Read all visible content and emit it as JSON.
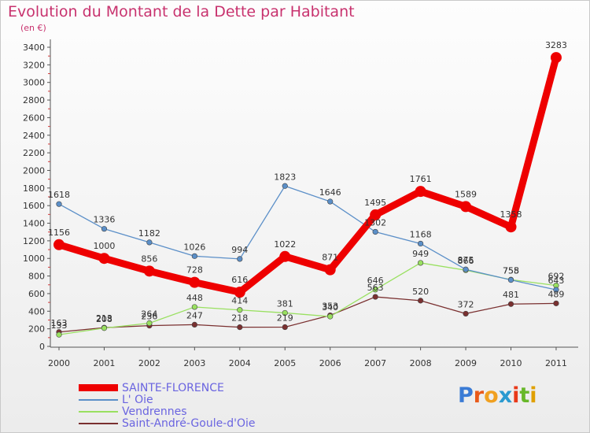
{
  "title": "Evolution du Montant de la Dette par Habitant",
  "subtitle": "(en €)",
  "logo": {
    "text": "Proxiti",
    "letter_colors": [
      "#3a7bd5",
      "#e85a1a",
      "#f0a020",
      "#2a9ad0",
      "#e83a1a",
      "#68b82a",
      "#e0a000"
    ]
  },
  "chart_data": {
    "type": "line",
    "title": "Evolution du Montant de la Dette par Habitant",
    "subtitle": "(en €)",
    "x": [
      "2000",
      "2001",
      "2002",
      "2003",
      "2004",
      "2005",
      "2006",
      "2007",
      "2008",
      "2009",
      "2010",
      "2011"
    ],
    "ylim": [
      0,
      3400
    ],
    "yticks": [
      0,
      200,
      400,
      600,
      800,
      1000,
      1200,
      1400,
      1600,
      1800,
      2000,
      2200,
      2400,
      2600,
      2800,
      3000,
      3200,
      3400
    ],
    "grid": false,
    "legend_position": "bottom-left",
    "series": [
      {
        "name": "SAINTE-FLORENCE",
        "color": "#ee0000",
        "values": [
          1156,
          1000,
          856,
          728,
          616,
          1022,
          871,
          1495,
          1761,
          1589,
          1358,
          3283
        ],
        "labels": [
          "1156",
          "1000",
          "856",
          "728",
          "616",
          "1022",
          "871",
          "1495",
          "1761",
          "1589",
          "1358",
          "3283"
        ]
      },
      {
        "name": "L' Oie",
        "color": "#5b8fc8",
        "values": [
          1618,
          1336,
          1182,
          1026,
          994,
          1823,
          1646,
          1302,
          1168,
          875,
          755,
          643
        ],
        "labels": [
          "1618",
          "1336",
          "1182",
          "1026",
          "994",
          "1823",
          "1646",
          "1302",
          "1168",
          "875",
          "755",
          "643"
        ]
      },
      {
        "name": "Vendrennes",
        "color": "#99e060",
        "values": [
          133,
          208,
          264,
          448,
          414,
          381,
          340,
          646,
          949,
          866,
          758,
          692
        ],
        "labels": [
          "133",
          "208",
          "264",
          "448",
          "414",
          "381",
          "340",
          "646",
          "949",
          "866",
          "758",
          "692"
        ]
      },
      {
        "name": "Saint-André-Goule-d'Oie",
        "color": "#7a3030",
        "values": [
          163,
          213,
          236,
          247,
          218,
          219,
          353,
          563,
          520,
          372,
          481,
          489
        ],
        "labels": [
          "163",
          "213",
          "236",
          "247",
          "218",
          "219",
          "353",
          "563",
          "520",
          "372",
          "481",
          "489"
        ]
      }
    ]
  }
}
